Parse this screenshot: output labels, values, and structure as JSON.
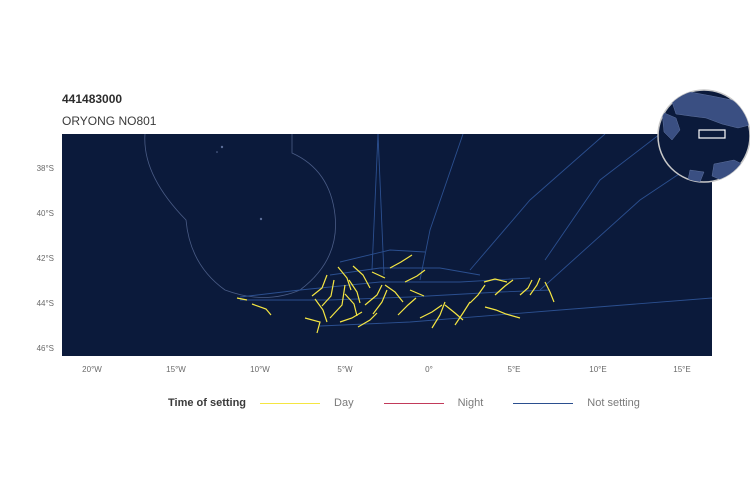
{
  "header": {
    "title": "441483000",
    "subtitle": "ORYONG NO801"
  },
  "map": {
    "lat_range": [
      -46.5,
      -36.4
    ],
    "lon_range": [
      -22,
      16.7
    ],
    "lat_ticks": [
      {
        "value": -38,
        "label": "38°S"
      },
      {
        "value": -40,
        "label": "40°S"
      },
      {
        "value": -42,
        "label": "42°S"
      },
      {
        "value": -44,
        "label": "44°S"
      },
      {
        "value": -46,
        "label": "46°S"
      }
    ],
    "lon_ticks": [
      {
        "value": -20,
        "label": "20°W"
      },
      {
        "value": -15,
        "label": "15°W"
      },
      {
        "value": -10,
        "label": "10°W"
      },
      {
        "value": -5,
        "label": "5°W"
      },
      {
        "value": 0,
        "label": "0°"
      },
      {
        "value": 5,
        "label": "5°E"
      },
      {
        "value": 10,
        "label": "10°E"
      },
      {
        "value": 15,
        "label": "15°E"
      }
    ],
    "background_color": "#0b1a3b",
    "boundary_color": "#4a5c86",
    "inset_icon": "globe-inset-icon"
  },
  "legend": {
    "title": "Time of setting",
    "items": [
      {
        "label": "Day",
        "color": "#f5e642"
      },
      {
        "label": "Night",
        "color": "#c23a5a"
      },
      {
        "label": "Not setting",
        "color": "#2b4f8f"
      }
    ]
  }
}
